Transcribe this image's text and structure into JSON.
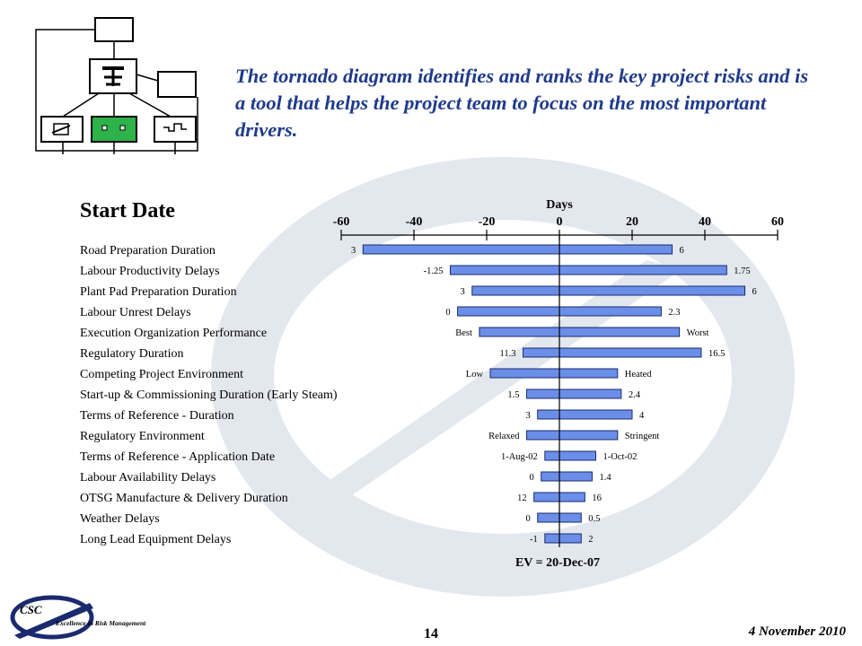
{
  "headline": "The tornado diagram identifies and ranks the key project risks and is a tool that helps the project team to focus on the most important drivers.",
  "colors": {
    "bar": "#6b8fe8",
    "bar_stroke": "#1a2a6e",
    "headline": "#1f3a8a",
    "watermark": "#dfe4ec"
  },
  "chart_data": {
    "type": "bar",
    "orientation": "horizontal-tornado",
    "title": "Start Date",
    "xlabel": "Days",
    "xlim": [
      -60,
      60
    ],
    "xticks": [
      "-60",
      "-40",
      "-20",
      "0",
      "20",
      "40",
      "60"
    ],
    "grid": false,
    "footer_label": "EV = 20-Dec-07",
    "rows": [
      {
        "label": "Road Preparation Duration",
        "low": -54,
        "high": 31,
        "low_text": "3",
        "high_text": "6"
      },
      {
        "label": "Labour Productivity Delays",
        "low": -30,
        "high": 46,
        "low_text": "-1.25",
        "high_text": "1.75"
      },
      {
        "label": "Plant Pad Preparation Duration",
        "low": -24,
        "high": 51,
        "low_text": "3",
        "high_text": "6"
      },
      {
        "label": "Labour Unrest Delays",
        "low": -28,
        "high": 28,
        "low_text": "0",
        "high_text": "2.3"
      },
      {
        "label": "Execution Organization Performance",
        "low": -22,
        "high": 33,
        "low_text": "Best",
        "high_text": "Worst"
      },
      {
        "label": "Regulatory Duration",
        "low": -10,
        "high": 39,
        "low_text": "11.3",
        "high_text": "16.5"
      },
      {
        "label": "Competing Project Environment",
        "low": -19,
        "high": 16,
        "low_text": "Low",
        "high_text": "Heated"
      },
      {
        "label": "Start-up & Commissioning  Duration (Early Steam)",
        "low": -9,
        "high": 17,
        "low_text": "1.5",
        "high_text": "2.4"
      },
      {
        "label": "Terms of Reference - Duration",
        "low": -6,
        "high": 20,
        "low_text": "3",
        "high_text": "4"
      },
      {
        "label": "Regulatory Environment",
        "low": -9,
        "high": 16,
        "low_text": "Relaxed",
        "high_text": "Stringent"
      },
      {
        "label": "Terms of Reference - Application Date",
        "low": -4,
        "high": 10,
        "low_text": "1-Aug-02",
        "high_text": "1-Oct-02"
      },
      {
        "label": "Labour Availability Delays",
        "low": -5,
        "high": 9,
        "low_text": "0",
        "high_text": "1.4"
      },
      {
        "label": "OTSG Manufacture & Delivery Duration",
        "low": -7,
        "high": 7,
        "low_text": "12",
        "high_text": "16"
      },
      {
        "label": "Weather Delays",
        "low": -6,
        "high": 6,
        "low_text": "0",
        "high_text": "0.5"
      },
      {
        "label": "Long Lead Equipment Delays",
        "low": -4,
        "high": 6,
        "low_text": "-1",
        "high_text": "2"
      }
    ]
  },
  "footer": {
    "logo_text": "CSC",
    "logo_tagline": "Excellence in Risk Management",
    "page_number": "14",
    "date": "4 November 2010"
  }
}
